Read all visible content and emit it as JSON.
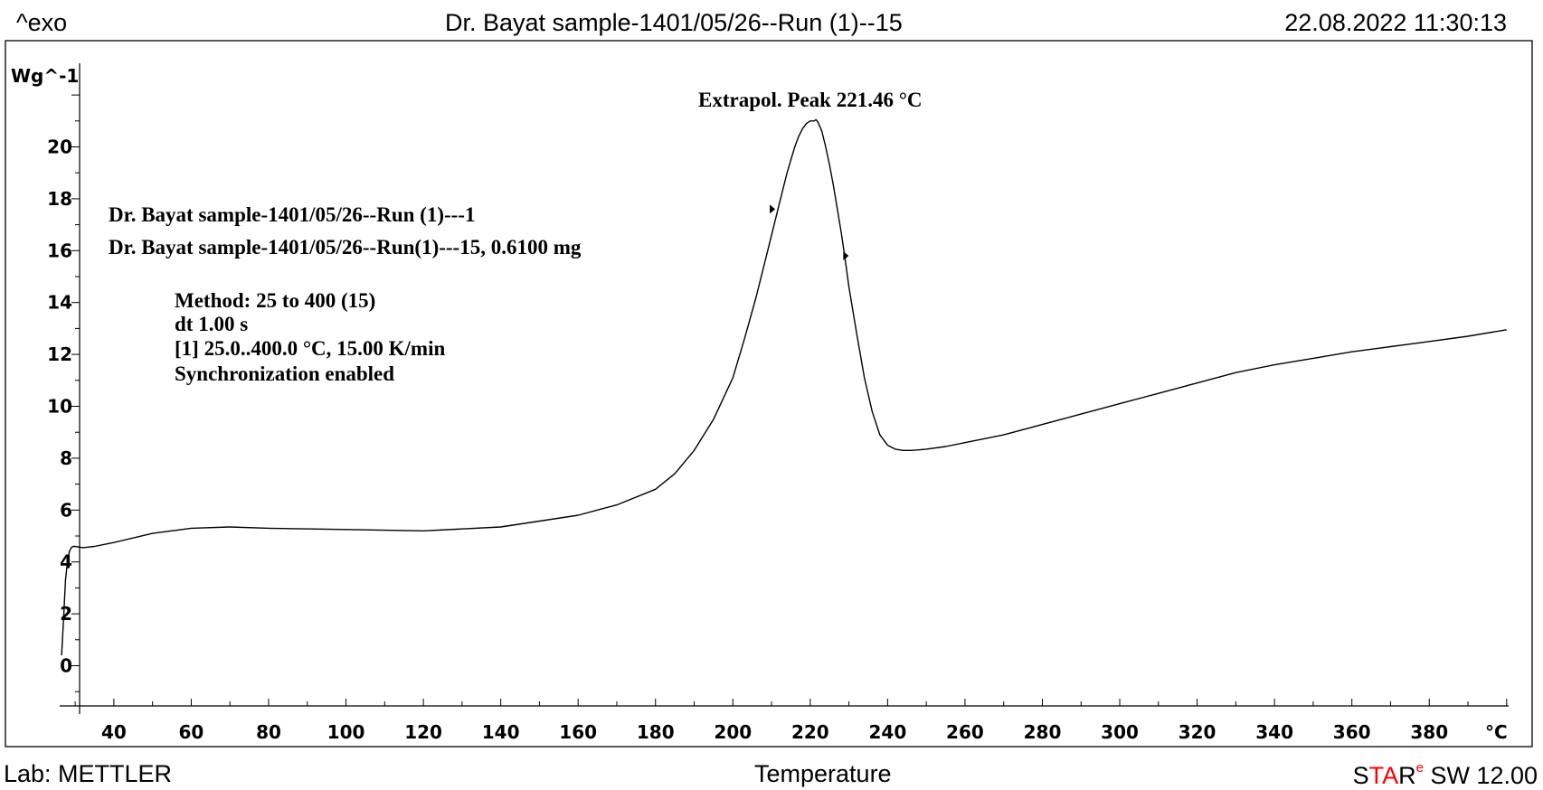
{
  "header": {
    "left": "^exo",
    "center": "Dr. Bayat sample-1401/05/26--Run   (1)--15",
    "right": "22.08.2022 11:30:13"
  },
  "footer": {
    "left": "Lab: METTLER",
    "center": "Temperature",
    "brand_s": "S",
    "brand_ta": "TA",
    "brand_r": "R",
    "brand_sup": "e",
    "brand_rest": " SW 12.00"
  },
  "annotations": {
    "peak": "Extrapol. Peak   221.46   °C",
    "curve_name": "Dr. Bayat sample-1401/05/26--Run   (1)---1",
    "sample": "Dr. Bayat sample-1401/05/26--Run(1)---15, 0.6100 mg",
    "method": "Method: 25 to 400 (15)",
    "dt": "dt 1.00 s",
    "segment": "[1] 25.0..400.0   °C, 15.00 K/min",
    "sync": "Synchronization enabled"
  },
  "colors": {
    "brand_red": "#ff0000",
    "line": "#000000"
  },
  "chart_data": {
    "type": "line",
    "xlabel": "Temperature",
    "ylabel": "",
    "x_unit_label": "°C",
    "y_unit_label": "Wg^-1",
    "xlim": [
      26,
      400
    ],
    "ylim": [
      -1.5,
      23
    ],
    "x_ticks": [
      40,
      60,
      80,
      100,
      120,
      140,
      160,
      180,
      200,
      220,
      240,
      260,
      280,
      300,
      320,
      340,
      360,
      380
    ],
    "y_ticks": [
      0,
      2,
      4,
      6,
      8,
      10,
      12,
      14,
      16,
      18,
      20
    ],
    "grid": false,
    "series": [
      {
        "x": [
          26.5,
          27,
          27.5,
          28,
          28.5,
          29,
          29.5,
          30,
          32,
          35,
          40,
          50,
          60,
          70,
          80,
          100,
          120,
          140,
          160,
          170,
          180,
          185,
          190,
          195,
          200,
          203,
          206,
          209,
          212,
          214,
          216,
          217,
          218,
          219,
          220,
          221,
          221.5,
          222,
          223,
          224,
          225,
          226,
          227,
          228,
          229,
          230,
          232,
          234,
          236,
          238,
          240,
          242,
          244,
          246,
          248,
          250,
          255,
          260,
          270,
          280,
          290,
          300,
          310,
          320,
          330,
          340,
          350,
          360,
          370,
          380,
          390,
          400
        ],
        "y": [
          0.4,
          1.8,
          3.3,
          4.0,
          4.4,
          4.55,
          4.6,
          4.6,
          4.55,
          4.6,
          4.75,
          5.1,
          5.3,
          5.35,
          5.3,
          5.25,
          5.2,
          5.35,
          5.8,
          6.2,
          6.8,
          7.4,
          8.3,
          9.5,
          11.1,
          12.6,
          14.2,
          16.0,
          17.8,
          19.0,
          20.0,
          20.4,
          20.7,
          20.9,
          21.0,
          21.0,
          21.05,
          20.95,
          20.6,
          20.0,
          19.3,
          18.5,
          17.6,
          16.7,
          15.7,
          14.6,
          12.8,
          11.1,
          9.8,
          8.9,
          8.5,
          8.35,
          8.3,
          8.3,
          8.32,
          8.35,
          8.45,
          8.6,
          8.9,
          9.3,
          9.7,
          10.1,
          10.5,
          10.9,
          11.3,
          11.6,
          11.85,
          12.1,
          12.3,
          12.5,
          12.7,
          12.95
        ]
      }
    ],
    "markers": [
      {
        "x": 210,
        "y": 17.6
      },
      {
        "x": 229,
        "y": 15.8
      }
    ]
  }
}
